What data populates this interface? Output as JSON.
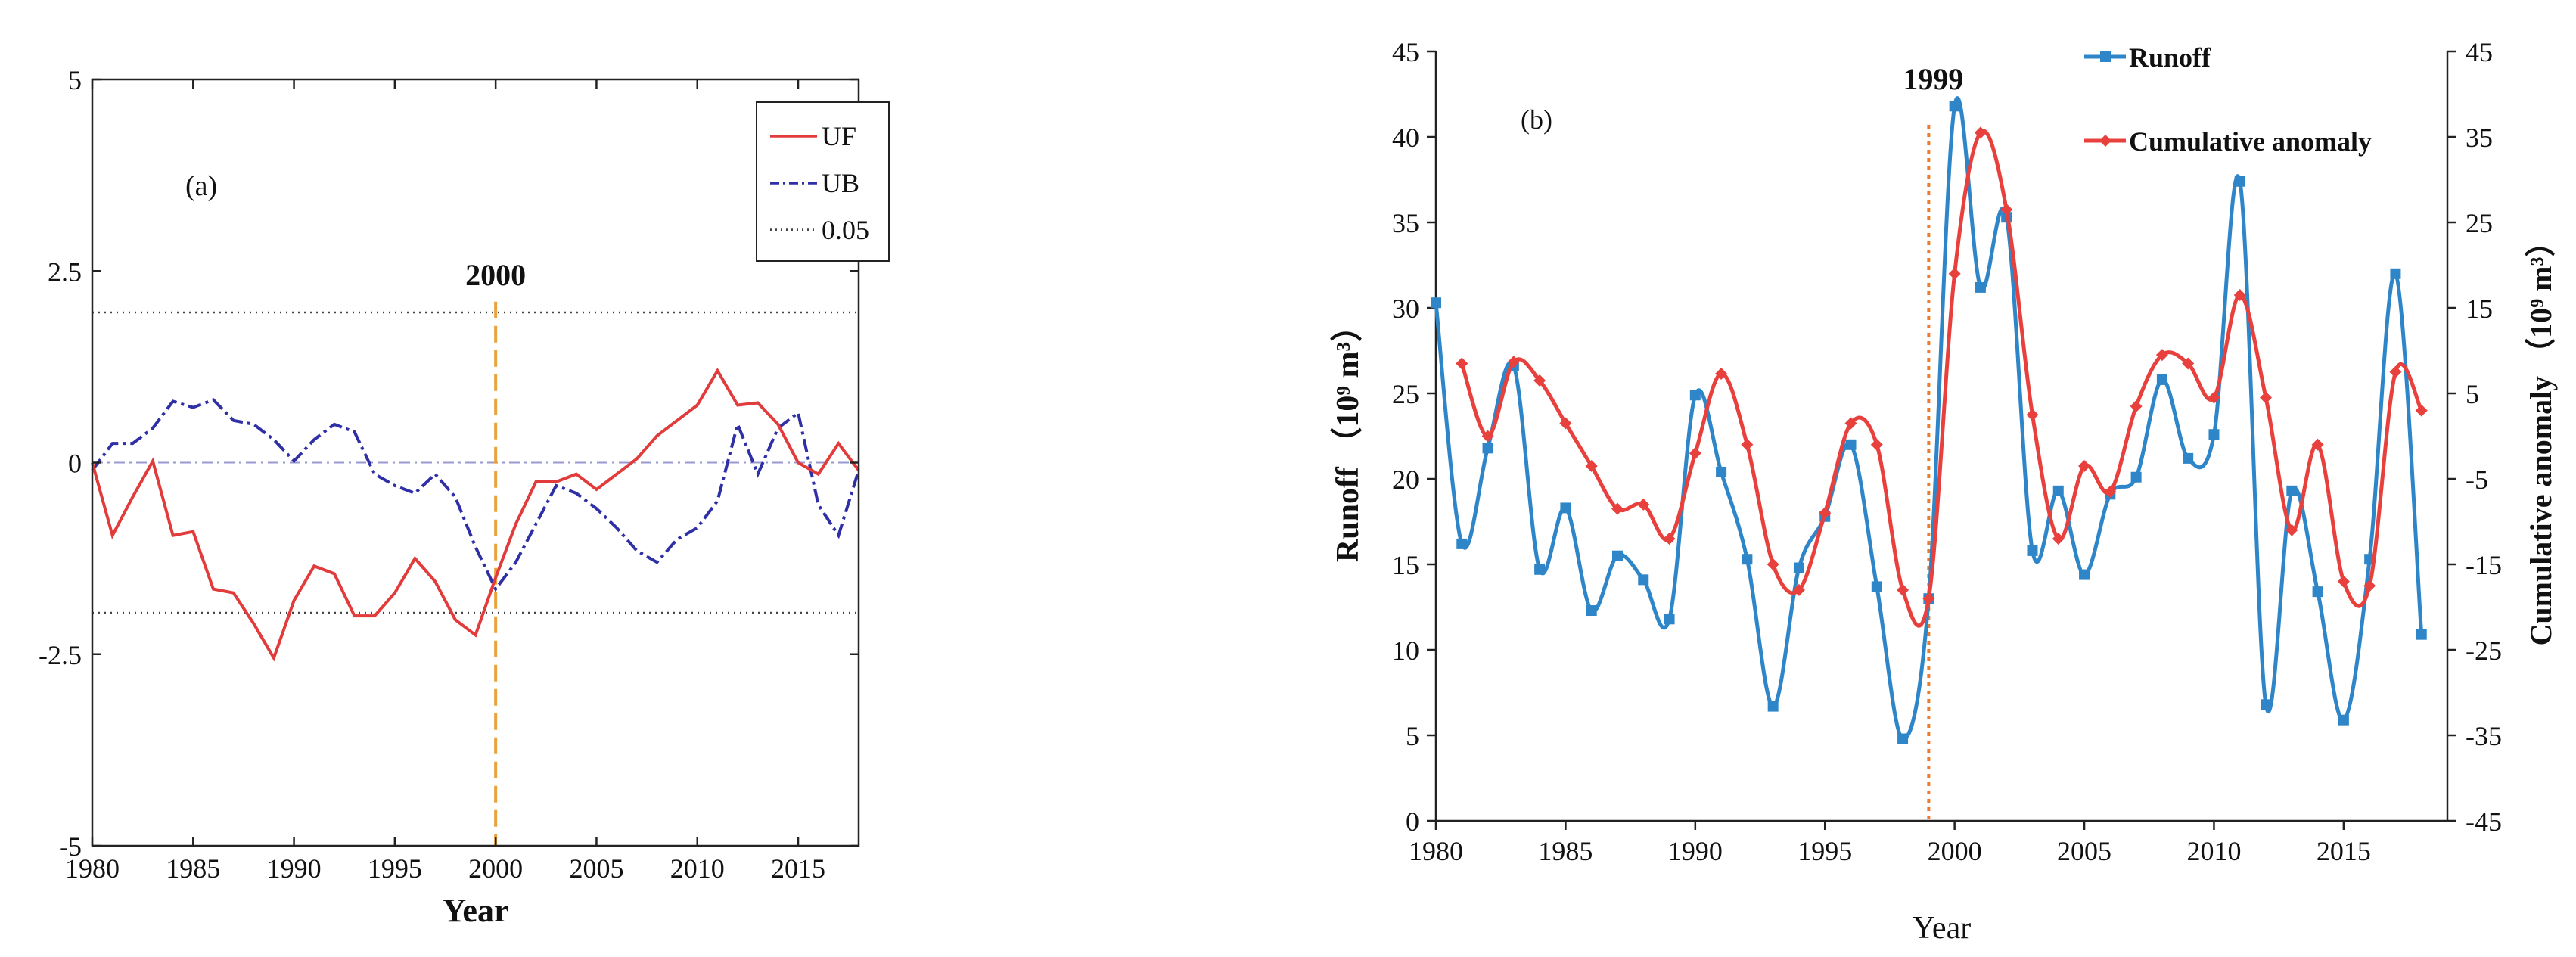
{
  "colors": {
    "uf": "#e23b3b",
    "ub": "#2f2fa6",
    "sig": "#444444",
    "changepoint_a": "#e8a33a",
    "runoff": "#2e86c8",
    "anomaly": "#e8403c",
    "changepoint_b": "#ef7a2a"
  },
  "chart_data": [
    {
      "type": "line",
      "panel_label": "(a)",
      "xlabel": "Year",
      "ylabel": "",
      "xlim": [
        1980,
        2018
      ],
      "ylim": [
        -5,
        5
      ],
      "xticks": [
        1980,
        1985,
        1990,
        1995,
        2000,
        2005,
        2010,
        2015
      ],
      "yticks": [
        -5,
        -2.5,
        0,
        2.5,
        5
      ],
      "ytick_labels": [
        "-5",
        "-2.5",
        "0",
        "2.5",
        "5"
      ],
      "legend": [
        "UF",
        "UB",
        "0.05"
      ],
      "legend_position": "top-right",
      "annotation": {
        "label": "2000",
        "x": 2000
      },
      "significance": [
        1.96,
        -1.96
      ],
      "x": [
        1980,
        1981,
        1982,
        1983,
        1984,
        1985,
        1986,
        1987,
        1988,
        1989,
        1990,
        1991,
        1992,
        1993,
        1994,
        1995,
        1996,
        1997,
        1998,
        1999,
        2000,
        2001,
        2002,
        2003,
        2004,
        2005,
        2006,
        2007,
        2008,
        2009,
        2010,
        2011,
        2012,
        2013,
        2014,
        2015,
        2016,
        2017,
        2018
      ],
      "series": [
        {
          "name": "UF",
          "values": [
            0,
            -0.95,
            -0.45,
            0.02,
            -0.95,
            -0.9,
            -1.65,
            -1.7,
            -2.1,
            -2.55,
            -1.8,
            -1.35,
            -1.45,
            -2.0,
            -2.0,
            -1.7,
            -1.25,
            -1.55,
            -2.05,
            -2.25,
            -1.5,
            -0.8,
            -0.25,
            -0.25,
            -0.15,
            -0.35,
            -0.15,
            0.05,
            0.35,
            0.55,
            0.75,
            1.2,
            0.75,
            0.78,
            0.5,
            0.0,
            -0.15,
            0.25,
            -0.1
          ]
        },
        {
          "name": "UB",
          "values": [
            -0.1,
            0.25,
            0.25,
            0.45,
            0.8,
            0.72,
            0.82,
            0.55,
            0.5,
            0.3,
            0.02,
            0.3,
            0.5,
            0.4,
            -0.15,
            -0.3,
            -0.4,
            -0.15,
            -0.45,
            -1.1,
            -1.65,
            -1.3,
            -0.8,
            -0.3,
            -0.4,
            -0.6,
            -0.85,
            -1.15,
            -1.3,
            -1.0,
            -0.85,
            -0.5,
            0.5,
            -0.15,
            0.45,
            0.65,
            -0.55,
            -0.95,
            -0.1
          ]
        }
      ]
    },
    {
      "type": "line",
      "panel_label": "(b)",
      "xlabel": "Year",
      "ylabel": "Runoff （10⁹ m³）",
      "y2label": "Cumulative anomaly （10⁹ m³）",
      "xlim": [
        1980,
        2019
      ],
      "ylim": [
        0,
        45
      ],
      "y2lim": [
        -45,
        45
      ],
      "xticks": [
        1980,
        1985,
        1990,
        1995,
        2000,
        2005,
        2010,
        2015
      ],
      "yticks": [
        0,
        5,
        10,
        15,
        20,
        25,
        30,
        35,
        40,
        45
      ],
      "y2ticks": [
        -45,
        -35,
        -25,
        -15,
        -5,
        5,
        15,
        25,
        35,
        45
      ],
      "legend": [
        "Runoff",
        "Cumulative anomaly"
      ],
      "legend_position": "top-right",
      "annotation": {
        "label": "1999",
        "x": 1999
      },
      "series": [
        {
          "name": "Runoff",
          "axis": "left",
          "x": [
            1980,
            1981,
            1982,
            1983,
            1984,
            1985,
            1986,
            1987,
            1988,
            1989,
            1990,
            1991,
            1992,
            1993,
            1994,
            1995,
            1996,
            1997,
            1998,
            1999,
            2000,
            2001,
            2002,
            2003,
            2004,
            2005,
            2006,
            2007,
            2008,
            2009,
            2010,
            2011,
            2012,
            2013,
            2014,
            2015,
            2016,
            2017,
            2018
          ],
          "values": [
            30.3,
            16.2,
            21.8,
            26.6,
            14.7,
            18.3,
            12.3,
            15.5,
            14.1,
            11.8,
            24.9,
            20.4,
            15.3,
            6.7,
            14.8,
            17.8,
            22.0,
            13.7,
            4.8,
            13.0,
            41.8,
            31.2,
            35.3,
            15.8,
            19.3,
            14.4,
            19.1,
            20.1,
            25.8,
            21.2,
            22.6,
            37.4,
            6.8,
            19.3,
            13.4,
            5.9,
            15.3,
            32.0,
            10.9
          ]
        },
        {
          "name": "Cumulative anomaly",
          "axis": "right",
          "x": [
            1981,
            1982,
            1983,
            1984,
            1985,
            1986,
            1987,
            1988,
            1989,
            1990,
            1991,
            1992,
            1993,
            1994,
            1995,
            1996,
            1997,
            1998,
            1999,
            2000,
            2001,
            2002,
            2003,
            2004,
            2005,
            2006,
            2007,
            2008,
            2009,
            2010,
            2011,
            2012,
            2013,
            2014,
            2015,
            2016,
            2017,
            2018
          ],
          "values": [
            8.5,
            0.0,
            8.7,
            6.5,
            1.5,
            -3.5,
            -8.5,
            -8.0,
            -12.0,
            -2.0,
            7.3,
            -1.0,
            -15.0,
            -18.0,
            -9.0,
            1.5,
            -1.0,
            -18.0,
            -19.0,
            19.0,
            35.5,
            26.5,
            2.5,
            -12.0,
            -3.5,
            -6.5,
            3.5,
            9.5,
            8.5,
            4.5,
            16.5,
            4.5,
            -11.0,
            -1.0,
            -17.0,
            -17.5,
            7.5,
            3.0
          ]
        }
      ]
    }
  ]
}
